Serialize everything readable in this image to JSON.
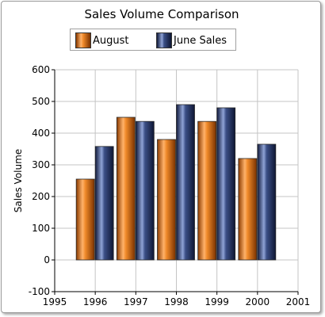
{
  "chart_data": {
    "type": "bar",
    "title": "Sales Volume Comparison",
    "xlabel": "",
    "ylabel": "Sales Volume",
    "x": [
      1996,
      1997,
      1998,
      1999,
      2000
    ],
    "series": [
      {
        "name": "August",
        "values": [
          255,
          450,
          380,
          437,
          320
        ]
      },
      {
        "name": "June Sales",
        "values": [
          358,
          437,
          490,
          480,
          365
        ]
      }
    ],
    "xlim": [
      1995,
      2001
    ],
    "ylim": [
      -100,
      600
    ],
    "xticks": [
      1995,
      1996,
      1997,
      1998,
      1999,
      2000,
      2001
    ],
    "yticks": [
      -100,
      0,
      100,
      200,
      300,
      400,
      500,
      600
    ],
    "grid": true,
    "legend_position": "top",
    "colors": {
      "August": "#e8760e",
      "June Sales": "#2b3d6e"
    }
  }
}
